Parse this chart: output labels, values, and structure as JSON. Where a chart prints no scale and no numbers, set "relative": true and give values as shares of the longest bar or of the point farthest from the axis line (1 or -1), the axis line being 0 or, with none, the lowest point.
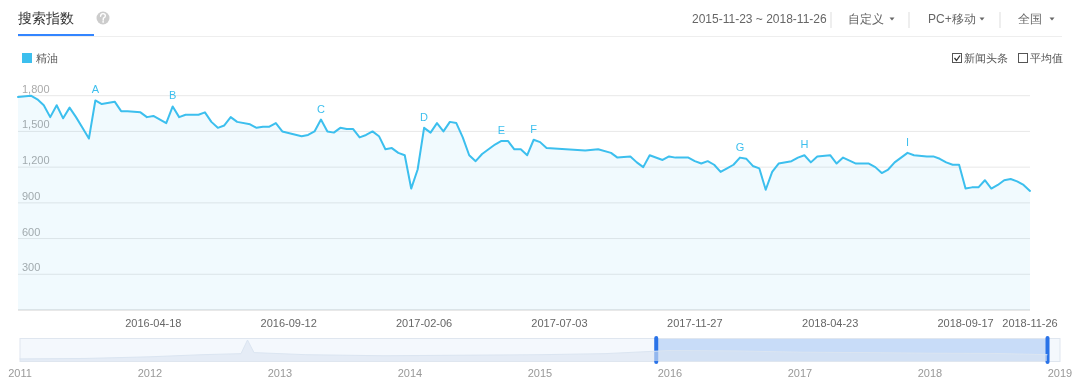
{
  "chart_data": [
    {
      "type": "area",
      "title": "搜索指数",
      "annotations": [
        "2015-11-23 ~ 2018-11-26",
        "自定义",
        "PC+移动",
        "全国",
        "新闻头条",
        "平均值",
        {
          "text": "A",
          "x": "2016-02-15",
          "y": 1760
        },
        {
          "text": "B",
          "x": "2016-05-09",
          "y": 1710
        },
        {
          "text": "C",
          "x": "2016-10-17",
          "y": 1600
        },
        {
          "text": "D",
          "x": "2017-02-06",
          "y": 1530
        },
        {
          "text": "E",
          "x": "2017-05-01",
          "y": 1420
        },
        {
          "text": "F",
          "x": "2017-06-05",
          "y": 1430
        },
        {
          "text": "G",
          "x": "2018-01-15",
          "y": 1280
        },
        {
          "text": "H",
          "x": "2018-03-26",
          "y": 1300
        },
        {
          "text": "I",
          "x": "2018-07-16",
          "y": 1320
        }
      ],
      "x": [
        "2015-11-23",
        "2015-12-07",
        "2015-12-14",
        "2015-12-21",
        "2015-12-28",
        "2016-01-04",
        "2016-01-11",
        "2016-01-18",
        "2016-01-25",
        "2016-02-01",
        "2016-02-08",
        "2016-02-15",
        "2016-02-22",
        "2016-03-07",
        "2016-03-14",
        "2016-03-21",
        "2016-04-04",
        "2016-04-11",
        "2016-04-18",
        "2016-05-02",
        "2016-05-09",
        "2016-05-16",
        "2016-05-23",
        "2016-06-06",
        "2016-06-13",
        "2016-06-20",
        "2016-06-27",
        "2016-07-04",
        "2016-07-11",
        "2016-07-18",
        "2016-08-01",
        "2016-08-08",
        "2016-08-15",
        "2016-08-22",
        "2016-08-29",
        "2016-09-05",
        "2016-09-26",
        "2016-10-03",
        "2016-10-10",
        "2016-10-17",
        "2016-10-24",
        "2016-10-31",
        "2016-11-07",
        "2016-11-14",
        "2016-11-21",
        "2016-11-28",
        "2016-12-05",
        "2016-12-12",
        "2016-12-19",
        "2016-12-26",
        "2017-01-02",
        "2017-01-09",
        "2017-01-16",
        "2017-01-23",
        "2017-01-30",
        "2017-02-06",
        "2017-02-13",
        "2017-02-20",
        "2017-02-27",
        "2017-03-06",
        "2017-03-13",
        "2017-03-20",
        "2017-03-27",
        "2017-04-03",
        "2017-04-10",
        "2017-04-24",
        "2017-05-01",
        "2017-05-08",
        "2017-05-15",
        "2017-05-22",
        "2017-05-29",
        "2017-06-05",
        "2017-06-12",
        "2017-06-19",
        "2017-07-10",
        "2017-07-31",
        "2017-08-14",
        "2017-08-28",
        "2017-09-04",
        "2017-09-18",
        "2017-09-25",
        "2017-10-02",
        "2017-10-09",
        "2017-10-23",
        "2017-10-30",
        "2017-11-06",
        "2017-11-20",
        "2017-11-27",
        "2017-12-04",
        "2017-12-11",
        "2017-12-18",
        "2017-12-25",
        "2018-01-01",
        "2018-01-08",
        "2018-01-15",
        "2018-01-22",
        "2018-01-29",
        "2018-02-05",
        "2018-02-12",
        "2018-02-19",
        "2018-02-26",
        "2018-03-12",
        "2018-03-19",
        "2018-03-26",
        "2018-04-02",
        "2018-04-09",
        "2018-04-23",
        "2018-04-30",
        "2018-05-07",
        "2018-05-21",
        "2018-06-04",
        "2018-06-11",
        "2018-06-18",
        "2018-06-25",
        "2018-07-02",
        "2018-07-09",
        "2018-07-16",
        "2018-07-23",
        "2018-08-06",
        "2018-08-13",
        "2018-08-20",
        "2018-08-27",
        "2018-09-03",
        "2018-09-10",
        "2018-09-17",
        "2018-09-24",
        "2018-10-01",
        "2018-10-08",
        "2018-10-15",
        "2018-10-22",
        "2018-10-29",
        "2018-11-05",
        "2018-11-12",
        "2018-11-19",
        "2018-11-26"
      ],
      "series": [
        {
          "name": "精油",
          "color": "#3cbfee",
          "values": [
            1790,
            1800,
            1770,
            1720,
            1620,
            1720,
            1610,
            1700,
            1620,
            1530,
            1440,
            1760,
            1730,
            1750,
            1670,
            1670,
            1660,
            1620,
            1630,
            1570,
            1710,
            1620,
            1640,
            1640,
            1660,
            1580,
            1530,
            1550,
            1620,
            1580,
            1560,
            1530,
            1540,
            1540,
            1570,
            1500,
            1460,
            1470,
            1500,
            1600,
            1500,
            1490,
            1530,
            1520,
            1520,
            1450,
            1470,
            1500,
            1460,
            1350,
            1360,
            1320,
            1300,
            1020,
            1180,
            1530,
            1490,
            1570,
            1500,
            1580,
            1570,
            1450,
            1300,
            1250,
            1310,
            1390,
            1420,
            1420,
            1350,
            1350,
            1300,
            1430,
            1410,
            1360,
            1350,
            1340,
            1350,
            1320,
            1280,
            1290,
            1240,
            1200,
            1300,
            1260,
            1290,
            1280,
            1280,
            1250,
            1230,
            1250,
            1220,
            1160,
            1190,
            1220,
            1280,
            1270,
            1210,
            1190,
            1010,
            1160,
            1230,
            1250,
            1280,
            1300,
            1240,
            1290,
            1300,
            1230,
            1280,
            1230,
            1230,
            1200,
            1150,
            1180,
            1240,
            1280,
            1320,
            1300,
            1290,
            1290,
            1270,
            1240,
            1220,
            1220,
            1020,
            1030,
            1030,
            1090,
            1020,
            1050,
            1090,
            1100,
            1080,
            1050,
            1000
          ]
        }
      ],
      "xlim": [
        "2015-11-23",
        "2018-11-26"
      ],
      "xticks": [
        "2016-04-18",
        "2016-09-12",
        "2017-02-06",
        "2017-07-03",
        "2017-11-27",
        "2018-04-23",
        "2018-09-17",
        "2018-11-26"
      ],
      "ylim": [
        0,
        1800
      ],
      "yticks": [
        {
          "value": 0,
          "label": null
        },
        {
          "value": 300,
          "label": "300"
        },
        {
          "value": 600,
          "label": "600"
        },
        {
          "value": 900,
          "label": "900"
        },
        {
          "value": 1200,
          "label": "1,200"
        },
        {
          "value": 1500,
          "label": "1,500"
        },
        {
          "value": 1800,
          "label": "1,800"
        }
      ],
      "grid": "y",
      "legend": "top left"
    },
    {
      "type": "area",
      "relative": true,
      "tick_labels": "x",
      "x": [
        2011,
        2011.5,
        2012,
        2012.4,
        2012.7,
        2012.75,
        2012.8,
        2013.2,
        2013.8,
        2014.5,
        2015,
        2015.5,
        2016,
        2016.5,
        2017,
        2017.5,
        2018,
        2018.5,
        2018.9
      ],
      "series": [
        {
          "color": "#dbe5f1",
          "values": [
            0.1,
            0.12,
            0.2,
            0.3,
            0.35,
            1,
            0.4,
            0.3,
            0.25,
            0.28,
            0.3,
            0.35,
            0.5,
            0.48,
            0.42,
            0.4,
            0.37,
            0.36,
            0.3
          ]
        }
      ],
      "xlim": [
        2011,
        2019
      ],
      "xticks": [
        2011,
        2012,
        2013,
        2014,
        2015,
        2016,
        2017,
        2018,
        2019
      ],
      "bands": [
        {
          "axis": "x",
          "from": 2015.894,
          "to": 2018.904,
          "color": "#c8dcf8"
        }
      ],
      "ref_lines": [
        {
          "axis": "x",
          "value": 2015.894,
          "color": "#2a73e8"
        },
        {
          "axis": "x",
          "value": 2018.904,
          "color": "#2a73e8"
        }
      ]
    }
  ]
}
